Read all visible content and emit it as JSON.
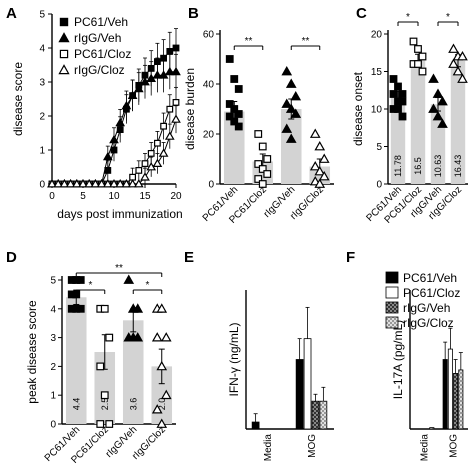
{
  "chart_data": [
    {
      "panel": "A",
      "type": "line",
      "xlabel": "days post immunization",
      "ylabel": "disease score",
      "ylim": [
        0,
        5
      ],
      "yticks": [
        "0",
        "1",
        "2",
        "3",
        "4",
        "5"
      ],
      "xlim": [
        0,
        20
      ],
      "xticks": [
        "0",
        "5",
        "10",
        "15",
        "20"
      ],
      "legend_position": "top-left",
      "series": [
        {
          "name": "PC61/Veh",
          "marker": "filled-square",
          "x": [
            0,
            1,
            2,
            3,
            4,
            5,
            6,
            7,
            8,
            9,
            10,
            11,
            12,
            13,
            14,
            15,
            16,
            17,
            18,
            19,
            20
          ],
          "values": [
            0,
            0,
            0,
            0,
            0,
            0,
            0,
            0,
            0,
            0.4,
            1.0,
            1.6,
            2.2,
            2.6,
            2.9,
            3.2,
            3.4,
            3.6,
            3.7,
            3.9,
            4.0
          ]
        },
        {
          "name": "rIgG/Veh",
          "marker": "filled-triangle",
          "x": [
            0,
            1,
            2,
            3,
            4,
            5,
            6,
            7,
            8,
            9,
            10,
            11,
            12,
            13,
            14,
            15,
            16,
            17,
            18,
            19,
            20
          ],
          "values": [
            0,
            0,
            0,
            0,
            0,
            0,
            0,
            0,
            0,
            0.8,
            1.3,
            1.8,
            2.3,
            2.6,
            2.8,
            3.0,
            3.1,
            3.2,
            3.2,
            3.3,
            3.3
          ]
        },
        {
          "name": "PC61/Cloz",
          "marker": "open-square",
          "x": [
            0,
            1,
            2,
            3,
            4,
            5,
            6,
            7,
            8,
            9,
            10,
            11,
            12,
            13,
            14,
            15,
            16,
            17,
            18,
            19,
            20
          ],
          "values": [
            0,
            0,
            0,
            0,
            0,
            0,
            0,
            0,
            0,
            0,
            0,
            0,
            0,
            0.2,
            0.4,
            0.6,
            0.9,
            1.2,
            1.7,
            2.2,
            2.4
          ]
        },
        {
          "name": "rIgG/Cloz",
          "marker": "open-triangle",
          "x": [
            0,
            1,
            2,
            3,
            4,
            5,
            6,
            7,
            8,
            9,
            10,
            11,
            12,
            13,
            14,
            15,
            16,
            17,
            18,
            19,
            20
          ],
          "values": [
            0,
            0,
            0,
            0,
            0,
            0,
            0,
            0,
            0,
            0,
            0,
            0,
            0,
            0,
            0,
            0.2,
            0.5,
            0.6,
            0.9,
            1.4,
            1.9
          ]
        }
      ]
    },
    {
      "panel": "B",
      "type": "bar",
      "ylabel": "disease burden",
      "ylim": [
        0,
        60
      ],
      "yticks": [
        "0",
        "20",
        "40",
        "60"
      ],
      "categories": [
        "PC61/Veh",
        "PC61/Cloz",
        "rIgG/Veh",
        "rIgG/Cloz"
      ],
      "values": [
        29,
        9,
        30,
        7
      ],
      "errors": [
        4,
        3,
        4,
        3
      ],
      "bar_colors": [
        "#d3d3d3",
        "#d3d3d3",
        "#d3d3d3",
        "#d3d3d3"
      ],
      "markers": [
        "filled-square",
        "open-square",
        "filled-triangle",
        "open-triangle"
      ],
      "points": [
        [
          50,
          42,
          38,
          32,
          30,
          28,
          27,
          25,
          23
        ],
        [
          20,
          15,
          10,
          8,
          6,
          4,
          2,
          0
        ],
        [
          45,
          40,
          35,
          32,
          30,
          28,
          22,
          18
        ],
        [
          20,
          15,
          10,
          7,
          5,
          3,
          1,
          0
        ]
      ],
      "significance": [
        {
          "between": [
            0,
            1
          ],
          "label": "**"
        },
        {
          "between": [
            2,
            3
          ],
          "label": "**"
        }
      ]
    },
    {
      "panel": "C",
      "type": "bar",
      "ylabel": "disease onset",
      "ylim": [
        0,
        20
      ],
      "yticks": [
        "0",
        "5",
        "10",
        "15",
        "20"
      ],
      "categories": [
        "PC61/Veh",
        "PC61/Cloz",
        "rIgG/Veh",
        "rIgG/Cloz"
      ],
      "values": [
        11.78,
        16.5,
        10.63,
        16.43
      ],
      "value_labels": [
        "11.78",
        "16.5",
        "10.63",
        "16.43"
      ],
      "errors": [
        0.6,
        0.8,
        0.9,
        0.8
      ],
      "markers": [
        "filled-square",
        "open-square",
        "filled-triangle",
        "open-triangle"
      ],
      "points": [
        [
          14,
          13,
          12,
          12,
          11,
          11,
          10,
          10,
          9
        ],
        [
          19,
          18,
          17,
          16,
          16,
          15
        ],
        [
          14,
          12,
          11,
          10,
          9,
          8
        ],
        [
          18,
          17,
          17,
          16,
          15,
          14
        ]
      ],
      "significance": [
        {
          "between": [
            0,
            1
          ],
          "label": "*"
        },
        {
          "between": [
            2,
            3
          ],
          "label": "*"
        }
      ]
    },
    {
      "panel": "D",
      "type": "bar",
      "ylabel": "peak disease score",
      "ylim": [
        0,
        5
      ],
      "yticks": [
        "0",
        "1",
        "2",
        "3",
        "4",
        "5"
      ],
      "categories": [
        "PC61/Veh",
        "PC61/Cloz",
        "rIgG/Veh",
        "rIgG/Cloz"
      ],
      "values": [
        4.4,
        2.5,
        3.6,
        2.0
      ],
      "value_labels": [
        "4.4",
        "2.5",
        "3.6",
        "2.0"
      ],
      "errors": [
        0.25,
        0.6,
        0.4,
        0.6
      ],
      "markers": [
        "filled-square",
        "open-square",
        "filled-triangle",
        "open-triangle"
      ],
      "points": [
        [
          5,
          5,
          5,
          4.5,
          4.5,
          4,
          4,
          4
        ],
        [
          4,
          4,
          3,
          2,
          1,
          0,
          0
        ],
        [
          5,
          4,
          4,
          3,
          3,
          3
        ],
        [
          4,
          4,
          3,
          3,
          2,
          1,
          0.5,
          0
        ]
      ],
      "significance": [
        {
          "between": [
            0,
            3
          ],
          "label": "**"
        },
        {
          "between": [
            0,
            1
          ],
          "label": "*"
        },
        {
          "between": [
            2,
            3
          ],
          "label": "*"
        }
      ]
    },
    {
      "panel": "E",
      "type": "bar",
      "ylabel": "IFN-γ (ng/mL)",
      "ylim": [
        0,
        20
      ],
      "yticks": [],
      "categories": [
        "Media",
        "MOG"
      ],
      "series": [
        {
          "name": "PC61/Veh",
          "values": [
            1,
            10
          ],
          "errors": [
            1.2,
            3
          ]
        },
        {
          "name": "PC61/Cloz",
          "values": [
            0,
            13
          ],
          "errors": [
            0,
            4.5
          ]
        },
        {
          "name": "rIgG/Veh",
          "values": [
            0,
            4
          ],
          "errors": [
            0,
            1
          ]
        },
        {
          "name": "rIgG/Cloz",
          "values": [
            0,
            4
          ],
          "errors": [
            0,
            2
          ]
        }
      ]
    },
    {
      "panel": "F",
      "type": "bar",
      "ylabel": "IL-17A (pg/mL)",
      "ylim": [
        0,
        2000
      ],
      "yticks": [],
      "categories": [
        "Media",
        "MOG"
      ],
      "legend_position": "top-right",
      "series": [
        {
          "name": "PC61/Veh",
          "values": [
            0,
            1000
          ],
          "errors": [
            0,
            250
          ],
          "fill": "#000000"
        },
        {
          "name": "PC61/Cloz",
          "values": [
            0,
            1150
          ],
          "errors": [
            0,
            300
          ],
          "fill": "#ffffff"
        },
        {
          "name": "rIgG/Veh",
          "values": [
            0,
            800
          ],
          "errors": [
            0,
            200
          ],
          "fill": "checker-dark"
        },
        {
          "name": "rIgG/Cloz",
          "values": [
            20,
            850
          ],
          "errors": [
            0,
            250
          ],
          "fill": "checker-light"
        }
      ]
    }
  ]
}
